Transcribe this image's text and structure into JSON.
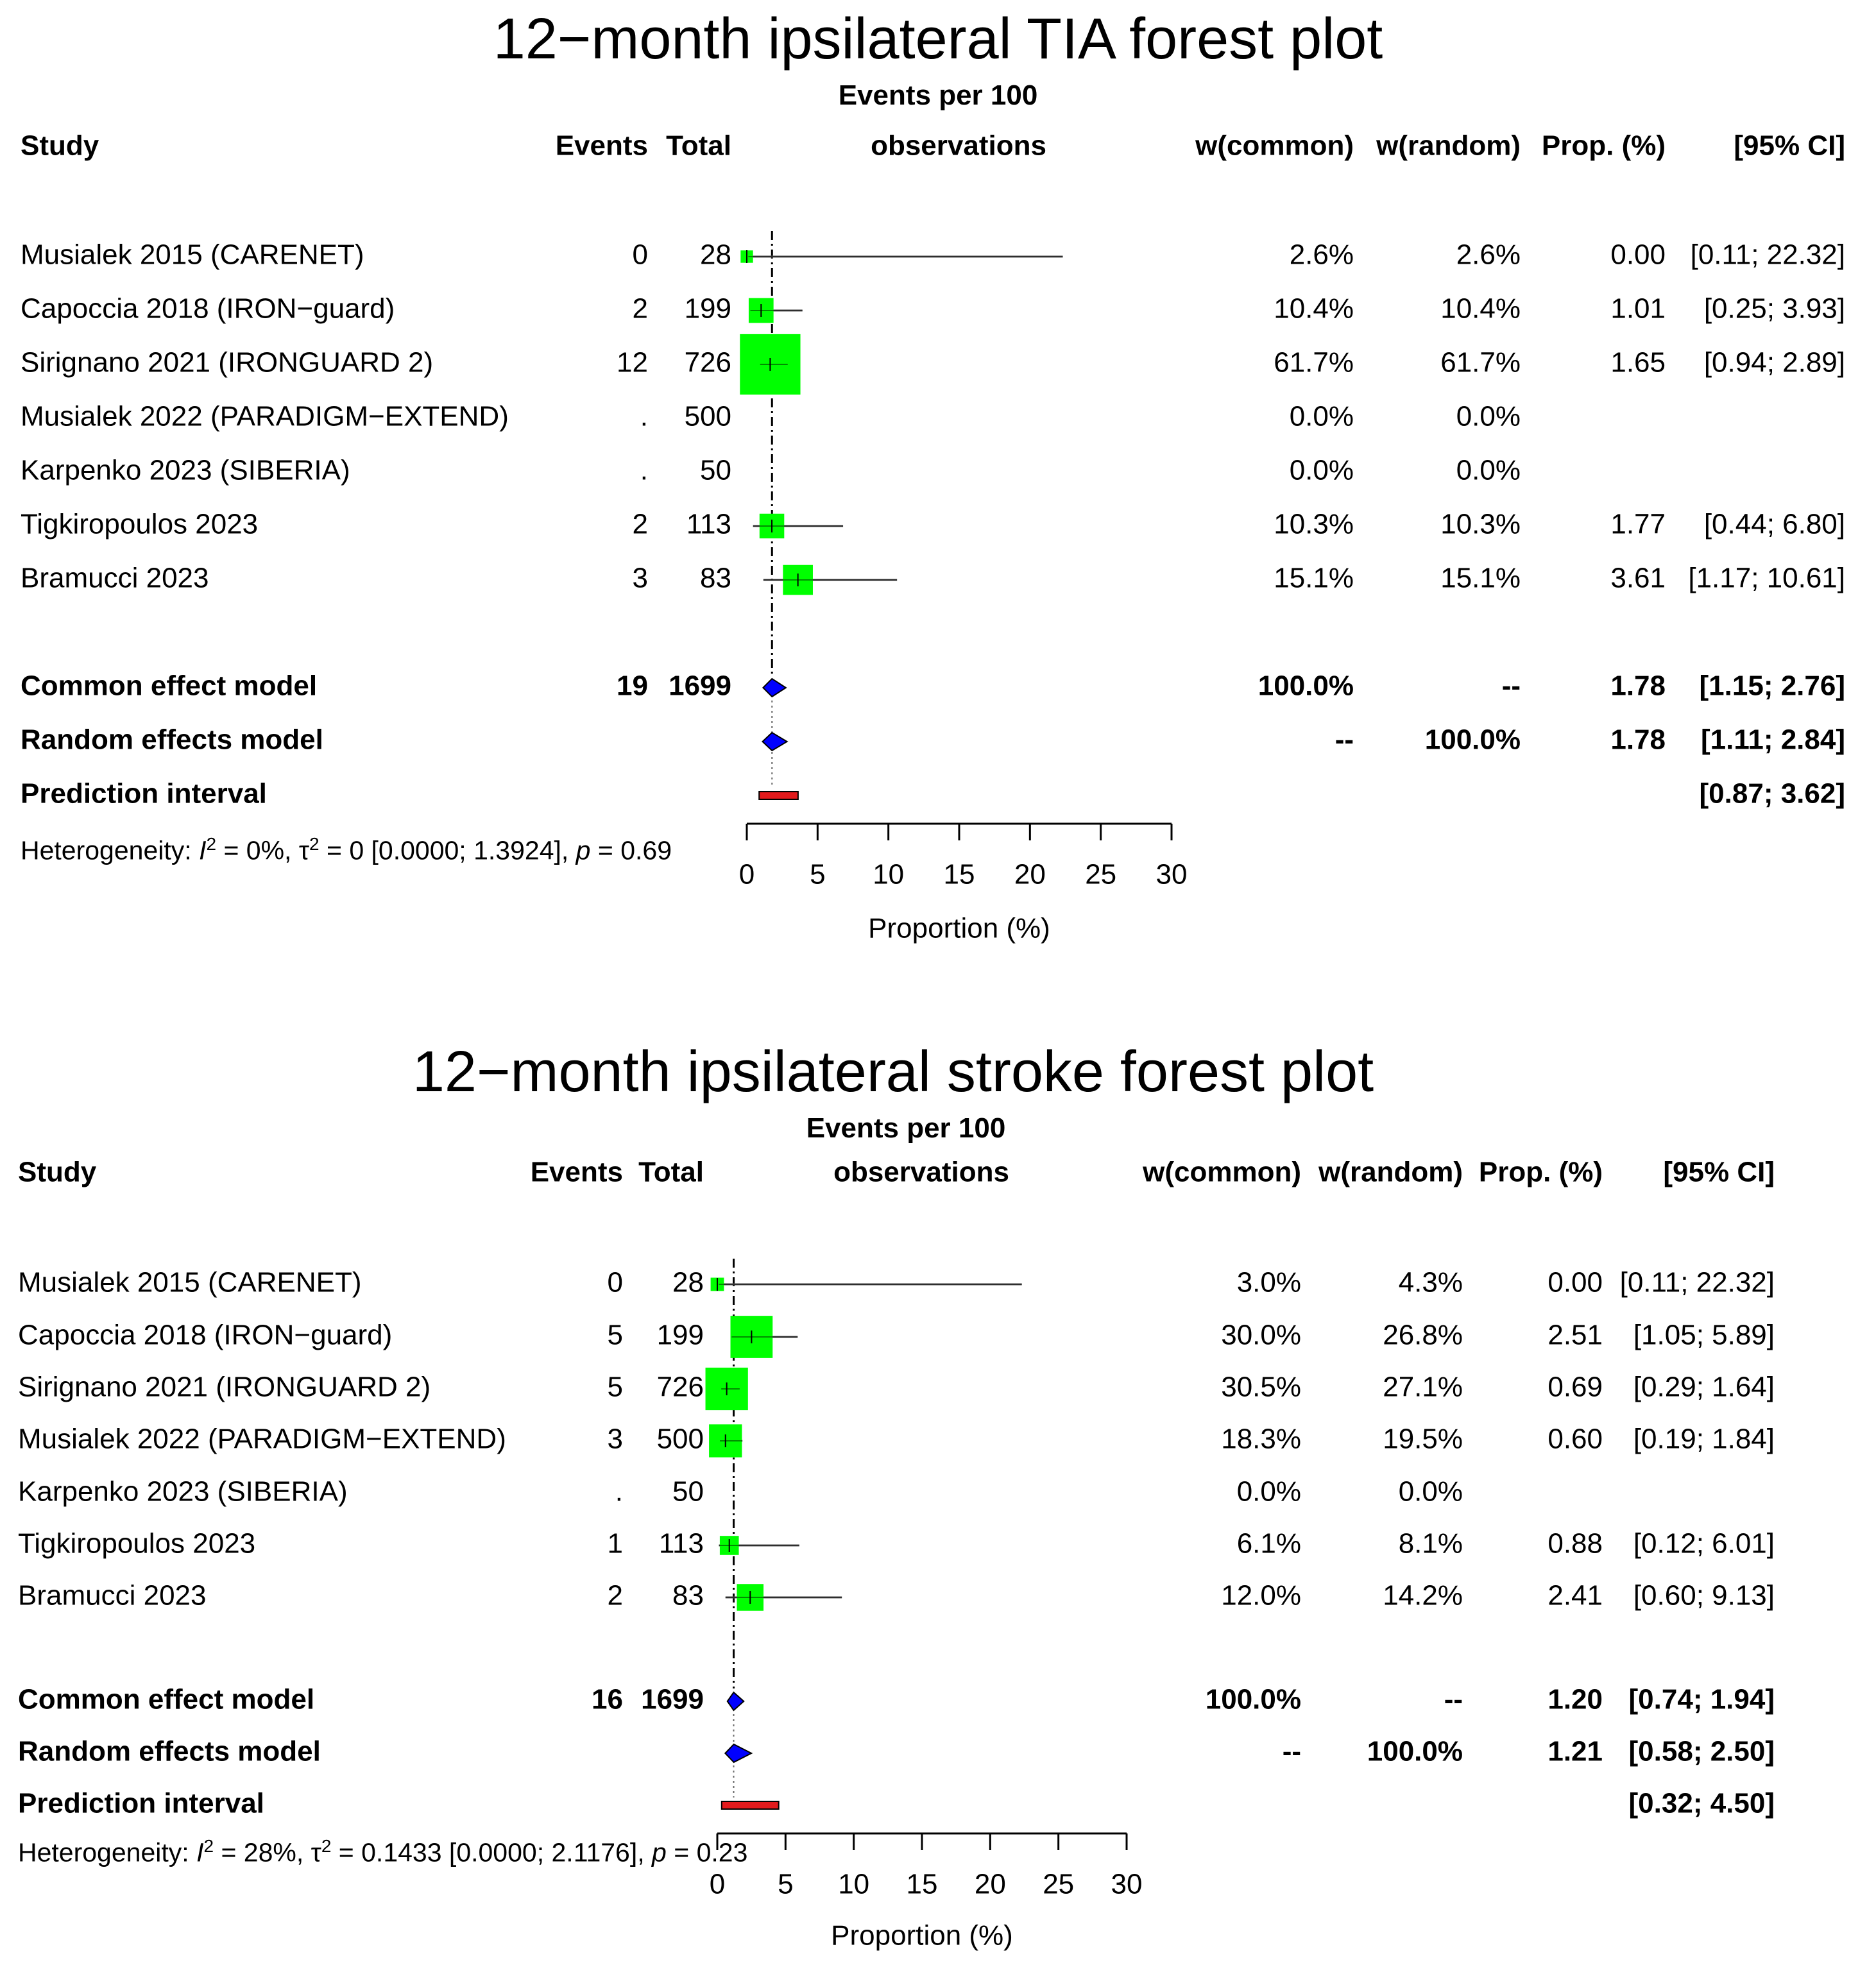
{
  "chart_data": [
    {
      "type": "forest",
      "title": "12−month ipsilateral TIA forest plot",
      "subtitle": "Events per 100",
      "columns": {
        "study": "Study",
        "events": "Events",
        "total": "Total",
        "observations": "observations",
        "w_common": "w(common)",
        "w_random": "w(random)",
        "prop": "Prop. (%)",
        "ci": "[95% CI]"
      },
      "studies": [
        {
          "name": "Musialek 2015 (CARENET)",
          "events": "0",
          "total": "28",
          "w_common": "2.6%",
          "w_random": "2.6%",
          "prop": "0.00",
          "ci": "[0.11; 22.32]",
          "est": 0.0,
          "lower": 0.11,
          "upper": 22.32,
          "weight": 2.6
        },
        {
          "name": "Capoccia 2018 (IRON−guard)",
          "events": "2",
          "total": "199",
          "w_common": "10.4%",
          "w_random": "10.4%",
          "prop": "1.01",
          "ci": "[0.25;  3.93]",
          "est": 1.01,
          "lower": 0.25,
          "upper": 3.93,
          "weight": 10.4
        },
        {
          "name": "Sirignano 2021 (IRONGUARD 2)",
          "events": "12",
          "total": "726",
          "w_common": "61.7%",
          "w_random": "61.7%",
          "prop": "1.65",
          "ci": "[0.94;  2.89]",
          "est": 1.65,
          "lower": 0.94,
          "upper": 2.89,
          "weight": 61.7
        },
        {
          "name": "Musialek 2022 (PARADIGM−EXTEND)",
          "events": ".",
          "total": "500",
          "w_common": "0.0%",
          "w_random": "0.0%",
          "prop": "",
          "ci": "",
          "est": null,
          "lower": null,
          "upper": null,
          "weight": 0.0
        },
        {
          "name": "Karpenko 2023 (SIBERIA)",
          "events": ".",
          "total": "50",
          "w_common": "0.0%",
          "w_random": "0.0%",
          "prop": "",
          "ci": "",
          "est": null,
          "lower": null,
          "upper": null,
          "weight": 0.0
        },
        {
          "name": "Tigkiropoulos 2023",
          "events": "2",
          "total": "113",
          "w_common": "10.3%",
          "w_random": "10.3%",
          "prop": "1.77",
          "ci": "[0.44;  6.80]",
          "est": 1.77,
          "lower": 0.44,
          "upper": 6.8,
          "weight": 10.3
        },
        {
          "name": "Bramucci 2023",
          "events": "3",
          "total": "83",
          "w_common": "15.1%",
          "w_random": "15.1%",
          "prop": "3.61",
          "ci": "[1.17; 10.61]",
          "est": 3.61,
          "lower": 1.17,
          "upper": 10.61,
          "weight": 15.1
        }
      ],
      "common": {
        "name": "Common effect model",
        "events": "19",
        "total": "1699",
        "w_common": "100.0%",
        "w_random": "--",
        "prop": "1.78",
        "ci": "[1.15;  2.76]",
        "est": 1.78,
        "lower": 1.15,
        "upper": 2.76
      },
      "random": {
        "name": "Random effects model",
        "events": "",
        "total": "",
        "w_common": "--",
        "w_random": "100.0%",
        "prop": "1.78",
        "ci": "[1.11;  2.84]",
        "est": 1.78,
        "lower": 1.11,
        "upper": 2.84
      },
      "prediction": {
        "name": "Prediction interval",
        "prop": "",
        "ci": "[0.87;  3.62]",
        "lower": 0.87,
        "upper": 3.62
      },
      "heterogeneity": {
        "prefix": "Heterogeneity: ",
        "i2_symbol": "I",
        "i2_value": " = 0%, ",
        "tau2_symbol": "τ",
        "tau2_value": " = 0 [0.0000; 1.3924], ",
        "p_symbol": "p",
        "p_value": " = 0.69"
      },
      "x_axis": {
        "label": "Proportion (%)",
        "ticks": [
          0,
          5,
          10,
          15,
          20,
          25,
          30
        ],
        "range": [
          0,
          30
        ]
      },
      "reference_line": 1.78,
      "colors": {
        "square": "#00ff00",
        "diamond": "#0000ff",
        "prediction": "#e31a1c",
        "ci_line": "#555555",
        "reference": "#000000"
      }
    },
    {
      "type": "forest",
      "title": "12−month ipsilateral stroke forest plot",
      "subtitle": "Events per 100",
      "columns": {
        "study": "Study",
        "events": "Events",
        "total": "Total",
        "observations": "observations",
        "w_common": "w(common)",
        "w_random": "w(random)",
        "prop": "Prop. (%)",
        "ci": "[95% CI]"
      },
      "studies": [
        {
          "name": "Musialek 2015 (CARENET)",
          "events": "0",
          "total": "28",
          "w_common": "3.0%",
          "w_random": "4.3%",
          "prop": "0.00",
          "ci": "[0.11; 22.32]",
          "est": 0.0,
          "lower": 0.11,
          "upper": 22.32,
          "weight": 3.0
        },
        {
          "name": "Capoccia 2018 (IRON−guard)",
          "events": "5",
          "total": "199",
          "w_common": "30.0%",
          "w_random": "26.8%",
          "prop": "2.51",
          "ci": "[1.05;  5.89]",
          "est": 2.51,
          "lower": 1.05,
          "upper": 5.89,
          "weight": 30.0
        },
        {
          "name": "Sirignano 2021 (IRONGUARD 2)",
          "events": "5",
          "total": "726",
          "w_common": "30.5%",
          "w_random": "27.1%",
          "prop": "0.69",
          "ci": "[0.29;  1.64]",
          "est": 0.69,
          "lower": 0.29,
          "upper": 1.64,
          "weight": 30.5
        },
        {
          "name": "Musialek 2022 (PARADIGM−EXTEND)",
          "events": "3",
          "total": "500",
          "w_common": "18.3%",
          "w_random": "19.5%",
          "prop": "0.60",
          "ci": "[0.19;  1.84]",
          "est": 0.6,
          "lower": 0.19,
          "upper": 1.84,
          "weight": 18.3
        },
        {
          "name": "Karpenko 2023 (SIBERIA)",
          "events": ".",
          "total": "50",
          "w_common": "0.0%",
          "w_random": "0.0%",
          "prop": "",
          "ci": "",
          "est": null,
          "lower": null,
          "upper": null,
          "weight": 0.0
        },
        {
          "name": "Tigkiropoulos 2023",
          "events": "1",
          "total": "113",
          "w_common": "6.1%",
          "w_random": "8.1%",
          "prop": "0.88",
          "ci": "[0.12;  6.01]",
          "est": 0.88,
          "lower": 0.12,
          "upper": 6.01,
          "weight": 6.1
        },
        {
          "name": "Bramucci 2023",
          "events": "2",
          "total": "83",
          "w_common": "12.0%",
          "w_random": "14.2%",
          "prop": "2.41",
          "ci": "[0.60;  9.13]",
          "est": 2.41,
          "lower": 0.6,
          "upper": 9.13,
          "weight": 12.0
        }
      ],
      "common": {
        "name": "Common effect model",
        "events": "16",
        "total": "1699",
        "w_common": "100.0%",
        "w_random": "--",
        "prop": "1.20",
        "ci": "[0.74;  1.94]",
        "est": 1.2,
        "lower": 0.74,
        "upper": 1.94
      },
      "random": {
        "name": "Random effects model",
        "events": "",
        "total": "",
        "w_common": "--",
        "w_random": "100.0%",
        "prop": "1.21",
        "ci": "[0.58;  2.50]",
        "est": 1.21,
        "lower": 0.58,
        "upper": 2.5
      },
      "prediction": {
        "name": "Prediction interval",
        "prop": "",
        "ci": "[0.32;  4.50]",
        "lower": 0.32,
        "upper": 4.5
      },
      "heterogeneity": {
        "prefix": "Heterogeneity: ",
        "i2_symbol": "I",
        "i2_value": " = 28%, ",
        "tau2_symbol": "τ",
        "tau2_value": " = 0.1433 [0.0000; 2.1176], ",
        "p_symbol": "p",
        "p_value": " = 0.23"
      },
      "x_axis": {
        "label": "Proportion (%)",
        "ticks": [
          0,
          5,
          10,
          15,
          20,
          25,
          30
        ],
        "range": [
          0,
          30
        ]
      },
      "reference_line": 1.2,
      "colors": {
        "square": "#00ff00",
        "diamond": "#0000ff",
        "prediction": "#e31a1c",
        "ci_line": "#555555",
        "reference": "#000000"
      }
    }
  ]
}
